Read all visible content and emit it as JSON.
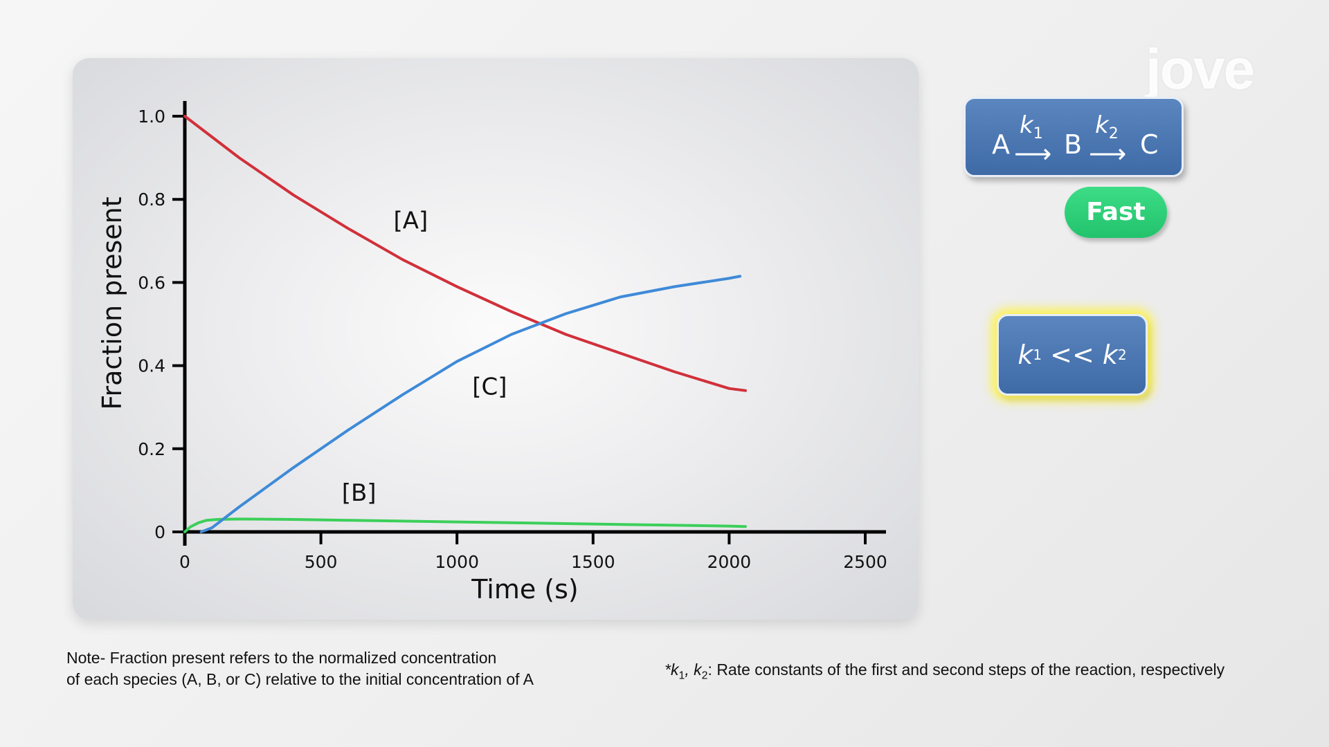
{
  "chart_data": {
    "type": "line",
    "xlabel": "Time (s)",
    "ylabel": "Fraction present",
    "xlim": [
      0,
      2500
    ],
    "ylim": [
      0,
      1.0
    ],
    "x_ticks": [
      "0",
      "500",
      "1000",
      "1500",
      "2000",
      "2500"
    ],
    "y_ticks": [
      "0",
      "0.2",
      "0.4",
      "0.6",
      "0.8",
      "1.0"
    ],
    "grid": false,
    "series": [
      {
        "name": "[A]",
        "color": "#d1303a",
        "x": [
          0,
          200,
          400,
          600,
          800,
          1000,
          1200,
          1400,
          1600,
          1800,
          2000,
          2060
        ],
        "y": [
          1.0,
          0.9,
          0.81,
          0.73,
          0.655,
          0.59,
          0.53,
          0.475,
          0.43,
          0.385,
          0.345,
          0.34
        ]
      },
      {
        "name": "[B]",
        "color": "#3ccf5a",
        "x": [
          0,
          20,
          50,
          80,
          120,
          200,
          400,
          600,
          800,
          1000,
          1200,
          1400,
          1600,
          1800,
          2000,
          2060
        ],
        "y": [
          0,
          0.012,
          0.022,
          0.028,
          0.03,
          0.031,
          0.03,
          0.028,
          0.026,
          0.024,
          0.022,
          0.02,
          0.018,
          0.016,
          0.014,
          0.013
        ]
      },
      {
        "name": "[C]",
        "color": "#3f8ad8",
        "x": [
          60,
          100,
          200,
          400,
          600,
          800,
          1000,
          1200,
          1400,
          1600,
          1800,
          2000,
          2040
        ],
        "y": [
          0.0,
          0.01,
          0.06,
          0.155,
          0.245,
          0.33,
          0.41,
          0.475,
          0.525,
          0.565,
          0.59,
          0.61,
          0.615
        ]
      }
    ],
    "annotations": [
      {
        "text": "[A]",
        "x": 830,
        "y": 0.73
      },
      {
        "text": "[C]",
        "x": 1120,
        "y": 0.33
      },
      {
        "text": "[B]",
        "x": 640,
        "y": 0.075
      }
    ]
  },
  "reaction": {
    "species_a": "A",
    "species_b": "B",
    "species_c": "C",
    "k1": "k",
    "k1_sub": "1",
    "k2": "k",
    "k2_sub": "2",
    "arrow": "⟶"
  },
  "badge": "Fast",
  "condition": {
    "k1": "k",
    "k1_sub": "1",
    "relation": " << ",
    "k2": "k",
    "k2_sub": "2"
  },
  "note": {
    "line1": "Note- Fraction present refers to the normalized concentration",
    "line2": "of each species (A, B, or C) relative to the initial concentration of A"
  },
  "footnote": {
    "prefix": "*k",
    "sub1": "1",
    "mid": ", k",
    "sub2": "2",
    "text": ": Rate constants of the first and second steps of the reaction, respectively"
  },
  "watermark": "jove"
}
